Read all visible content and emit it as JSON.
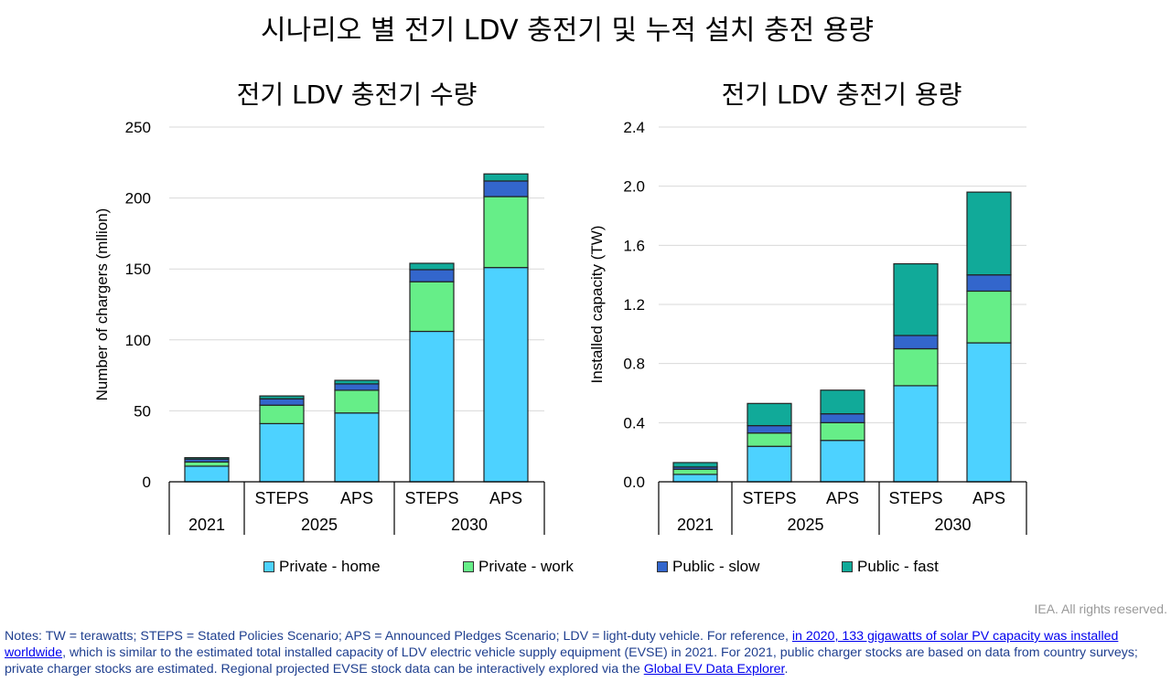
{
  "title": "시나리오 별 전기 LDV 충전기 및 누적 설치 충전 용량",
  "colors": {
    "Private - home": "#4dd2ff",
    "Private - work": "#66ee88",
    "Public - slow": "#3366cc",
    "Public - fast": "#11aa99"
  },
  "legend": [
    "Private - home",
    "Private - work",
    "Public - slow",
    "Public - fast"
  ],
  "chart_data": [
    {
      "type": "bar",
      "stacked": true,
      "title": "전기 LDV 충전기 수량",
      "ylabel": "Number of chargers (mllion)",
      "ylim": [
        0,
        250
      ],
      "yticks": [
        0,
        50,
        100,
        150,
        200,
        250
      ],
      "grid": true,
      "categories": [
        "2021",
        "STEPS 2025",
        "APS 2025",
        "STEPS 2030",
        "APS 2030"
      ],
      "series": [
        {
          "name": "Private - home",
          "values": [
            11,
            41,
            48.5,
            106,
            151
          ]
        },
        {
          "name": "Private - work",
          "values": [
            3,
            13,
            16,
            35,
            50
          ]
        },
        {
          "name": "Public - slow",
          "values": [
            2,
            4.5,
            4.5,
            8.5,
            11
          ]
        },
        {
          "name": "Public - fast",
          "values": [
            1,
            2,
            2.5,
            4.5,
            5
          ]
        }
      ]
    },
    {
      "type": "bar",
      "stacked": true,
      "title": "전기 LDV 충전기 용량",
      "ylabel": "Installed capacity (TW)",
      "ylim": [
        0,
        2.4
      ],
      "yticks": [
        "0.0",
        "0.4",
        "0.8",
        "1.2",
        "1.6",
        "2.0",
        "2.4"
      ],
      "grid": true,
      "categories": [
        "2021",
        "STEPS 2025",
        "APS 2025",
        "STEPS 2030",
        "APS 2030"
      ],
      "series": [
        {
          "name": "Private - home",
          "values": [
            0.05,
            0.24,
            0.28,
            0.65,
            0.94
          ]
        },
        {
          "name": "Private - work",
          "values": [
            0.035,
            0.09,
            0.12,
            0.25,
            0.35
          ]
        },
        {
          "name": "Public - slow",
          "values": [
            0.015,
            0.05,
            0.06,
            0.09,
            0.11
          ]
        },
        {
          "name": "Public - fast",
          "values": [
            0.03,
            0.15,
            0.16,
            0.485,
            0.56
          ]
        }
      ]
    }
  ],
  "axis_groups": {
    "scenarios": [
      "STEPS",
      "APS",
      "STEPS",
      "APS"
    ],
    "years": [
      "2021",
      "2025",
      "2030"
    ]
  },
  "rights": "IEA. All rights reserved.",
  "notes": {
    "part1": "Notes: TW = terawatts; STEPS = Stated Policies Scenario; APS = Announced Pledges Scenario; LDV = light-duty vehicle. For reference, ",
    "link1": "in 2020, 133 gigawatts of solar PV capacity was installed worldwide",
    "part2": ", which is similar to the estimated total installed capacity of LDV electric vehicle supply equipment (EVSE) in 2021. For 2021, public charger stocks are based on data from country surveys; private charger stocks are estimated. Regional projected EVSE stock data can be interactively explored via the ",
    "link2": "Global EV Data Explorer",
    "part3": "."
  }
}
